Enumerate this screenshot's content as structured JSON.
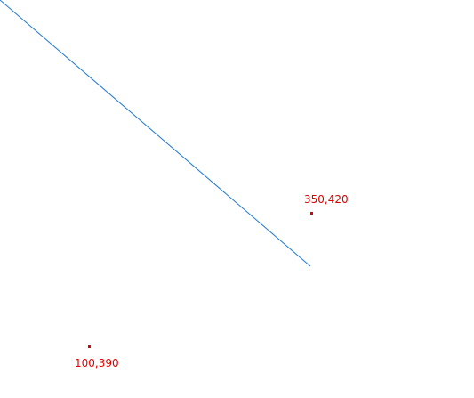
{
  "colors": {
    "background": "#ffffff",
    "line": "#1f78d1",
    "marker": "#e00000"
  },
  "points": [
    {
      "label": "350,420"
    },
    {
      "label": "100,390"
    }
  ]
}
